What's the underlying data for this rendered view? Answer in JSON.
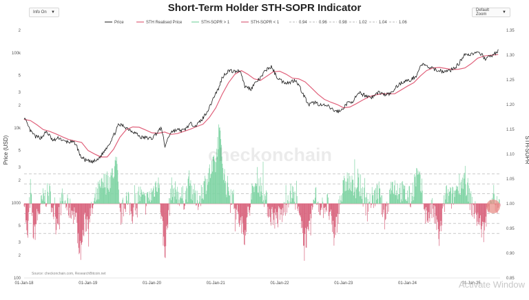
{
  "controls": {
    "left_select": "Info On",
    "right_select": "Default Zoom"
  },
  "watermark_text": "Activate Window",
  "chart_data": {
    "type": "line",
    "title": "Short-Term Holder STH-SOPR Indicator",
    "ylabel_left": "Price (USD)",
    "ylabel_right": "STH-SOPR",
    "left_axis": {
      "scale": "log",
      "range": [
        100,
        200000
      ],
      "ticks": [
        "100",
        "2",
        "3",
        "5",
        "1000",
        "2",
        "3",
        "5",
        "10k",
        "2",
        "3",
        "5",
        "100k",
        "2"
      ]
    },
    "right_axis": {
      "range": [
        0.85,
        1.35
      ],
      "ticks": [
        "0.85",
        "0.90",
        "0.95",
        "1.00",
        "1.05",
        "1.10",
        "1.15",
        "1.20",
        "1.25",
        "1.30",
        "1.35"
      ]
    },
    "x_ticks": [
      "01-Jan-18",
      "01-Jan-19",
      "01-Jan-20",
      "01-Jan-21",
      "01-Jan-22",
      "01-Jan-23",
      "01-Jan-24",
      "01-Jan-25"
    ],
    "x_range": [
      2018.0,
      2025.45
    ],
    "reference_levels": [
      0.94,
      0.96,
      0.98,
      1.0,
      1.02,
      1.04,
      1.06
    ],
    "legend": [
      "Price",
      "STH Realised Price",
      "STH-SOPR > 1",
      "STH-SOPR < 1",
      "0.94",
      "0.96",
      "0.98",
      "1.02",
      "1.04",
      "1.06"
    ],
    "watermark": "checkonchain",
    "source": "Source: checkonchain.com, ResearchBitcoin.net",
    "colors": {
      "price": "#1a1a1a",
      "realised": "#e0607a",
      "sopr_up": "#7fd4a4",
      "sopr_down": "#d8627c",
      "ref": "#a8a8a8"
    },
    "series": [
      {
        "name": "Price",
        "x": [
          2018.0,
          2018.05,
          2018.1,
          2018.18,
          2018.27,
          2018.35,
          2018.45,
          2018.55,
          2018.62,
          2018.7,
          2018.8,
          2018.88,
          2018.96,
          2019.05,
          2019.15,
          2019.25,
          2019.35,
          2019.42,
          2019.48,
          2019.55,
          2019.65,
          2019.75,
          2019.82,
          2019.9,
          2020.0,
          2020.1,
          2020.15,
          2020.2,
          2020.3,
          2020.4,
          2020.5,
          2020.6,
          2020.7,
          2020.8,
          2020.9,
          2021.0,
          2021.05,
          2021.1,
          2021.2,
          2021.3,
          2021.38,
          2021.45,
          2021.55,
          2021.62,
          2021.7,
          2021.8,
          2021.87,
          2021.95,
          2022.05,
          2022.15,
          2022.25,
          2022.35,
          2022.45,
          2022.55,
          2022.65,
          2022.75,
          2022.85,
          2022.95,
          2023.05,
          2023.15,
          2023.25,
          2023.35,
          2023.45,
          2023.55,
          2023.65,
          2023.75,
          2023.85,
          2023.95,
          2024.05,
          2024.15,
          2024.22,
          2024.3,
          2024.4,
          2024.5,
          2024.6,
          2024.7,
          2024.8,
          2024.9,
          2024.96,
          2025.05,
          2025.15,
          2025.22,
          2025.28,
          2025.35,
          2025.42
        ],
        "values": [
          13800,
          11000,
          9000,
          7600,
          7400,
          8900,
          6700,
          7400,
          6600,
          6500,
          6300,
          4200,
          3700,
          3500,
          3700,
          4800,
          6500,
          8500,
          11000,
          10700,
          9500,
          8500,
          7500,
          7400,
          7200,
          9000,
          10000,
          5500,
          8900,
          9400,
          9200,
          11300,
          10800,
          13400,
          18500,
          29000,
          34000,
          47000,
          58000,
          56000,
          59000,
          36000,
          33000,
          40000,
          46000,
          61000,
          65000,
          48000,
          41000,
          40000,
          44000,
          30000,
          20000,
          22000,
          20000,
          19500,
          17000,
          16500,
          21000,
          23000,
          29000,
          27000,
          25500,
          30000,
          27500,
          29000,
          37000,
          42000,
          43000,
          51000,
          71000,
          66000,
          61000,
          58000,
          56000,
          60000,
          70000,
          98000,
          94000,
          100000,
          96000,
          84000,
          88000,
          95000,
          106000
        ]
      },
      {
        "name": "STH Realised Price",
        "x": [
          2018.0,
          2018.1,
          2018.2,
          2018.3,
          2018.4,
          2018.5,
          2018.6,
          2018.7,
          2018.8,
          2018.9,
          2019.0,
          2019.1,
          2019.2,
          2019.3,
          2019.4,
          2019.5,
          2019.6,
          2019.7,
          2019.8,
          2019.9,
          2020.0,
          2020.1,
          2020.2,
          2020.3,
          2020.4,
          2020.5,
          2020.6,
          2020.7,
          2020.8,
          2020.9,
          2021.0,
          2021.1,
          2021.2,
          2021.3,
          2021.4,
          2021.5,
          2021.6,
          2021.7,
          2021.8,
          2021.9,
          2022.0,
          2022.1,
          2022.2,
          2022.3,
          2022.4,
          2022.5,
          2022.6,
          2022.7,
          2022.8,
          2022.9,
          2023.0,
          2023.1,
          2023.2,
          2023.3,
          2023.4,
          2023.5,
          2023.6,
          2023.7,
          2023.8,
          2023.9,
          2024.0,
          2024.1,
          2024.2,
          2024.3,
          2024.4,
          2024.5,
          2024.6,
          2024.7,
          2024.8,
          2024.9,
          2025.0,
          2025.1,
          2025.2,
          2025.3,
          2025.42
        ],
        "values": [
          13000,
          12500,
          11000,
          9500,
          9000,
          8300,
          7600,
          7000,
          6700,
          6400,
          5000,
          4500,
          4100,
          4100,
          5200,
          7500,
          9500,
          10300,
          10200,
          9400,
          8600,
          8500,
          8800,
          8200,
          8400,
          9000,
          9600,
          10400,
          11200,
          13800,
          18500,
          28000,
          40000,
          52000,
          58000,
          52000,
          45000,
          43000,
          49000,
          56000,
          57000,
          52000,
          46000,
          45000,
          41000,
          34000,
          28000,
          24000,
          22000,
          20500,
          18500,
          19000,
          21000,
          23500,
          26000,
          27500,
          28500,
          28500,
          28500,
          32000,
          36000,
          40000,
          49000,
          58000,
          63000,
          64000,
          62000,
          60000,
          60500,
          63000,
          72000,
          85000,
          91000,
          93000,
          95000
        ]
      }
    ],
    "sopr_curve": {
      "note": "STH-SOPR oscillator baseline 1.00 (segments above = STH-SOPR > 1, below = STH-SOPR < 1)",
      "x": [
        2018.0,
        2018.05,
        2018.1,
        2018.15,
        2018.2,
        2018.3,
        2018.4,
        2018.5,
        2018.6,
        2018.7,
        2018.8,
        2018.88,
        2018.95,
        2019.05,
        2019.15,
        2019.25,
        2019.35,
        2019.45,
        2019.5,
        2019.6,
        2019.7,
        2019.8,
        2019.9,
        2020.0,
        2020.1,
        2020.2,
        2020.3,
        2020.4,
        2020.5,
        2020.6,
        2020.7,
        2020.8,
        2020.9,
        2021.0,
        2021.05,
        2021.15,
        2021.25,
        2021.35,
        2021.45,
        2021.55,
        2021.65,
        2021.75,
        2021.85,
        2021.95,
        2022.05,
        2022.15,
        2022.25,
        2022.35,
        2022.45,
        2022.55,
        2022.65,
        2022.75,
        2022.85,
        2022.95,
        2023.05,
        2023.15,
        2023.25,
        2023.35,
        2023.45,
        2023.55,
        2023.65,
        2023.75,
        2023.85,
        2023.95,
        2024.05,
        2024.15,
        2024.22,
        2024.3,
        2024.4,
        2024.5,
        2024.6,
        2024.7,
        2024.8,
        2024.9,
        2025.0,
        2025.1,
        2025.2,
        2025.3,
        2025.42
      ],
      "values": [
        1.02,
        0.92,
        1.03,
        0.93,
        0.97,
        1.01,
        1.02,
        0.96,
        1.01,
        0.99,
        0.98,
        0.9,
        0.96,
        0.98,
        1.02,
        1.04,
        1.05,
        1.08,
        0.97,
        1.01,
        0.98,
        1.02,
        1.0,
        1.02,
        1.05,
        0.9,
        1.03,
        1.02,
        1.01,
        1.04,
        1.0,
        1.03,
        1.06,
        1.08,
        1.15,
        1.04,
        1.02,
        0.97,
        0.94,
        1.01,
        1.05,
        1.02,
        0.98,
        0.97,
        0.98,
        1.02,
        1.01,
        0.94,
        0.93,
        1.02,
        0.99,
        1.0,
        0.93,
        1.01,
        1.05,
        1.03,
        1.04,
        1.0,
        1.01,
        1.02,
        0.97,
        1.04,
        1.03,
        1.02,
        1.01,
        1.06,
        1.03,
        0.97,
        0.99,
        0.93,
        1.02,
        1.01,
        1.04,
        1.05,
        1.0,
        0.97,
        0.94,
        1.02,
        0.99
      ]
    }
  }
}
